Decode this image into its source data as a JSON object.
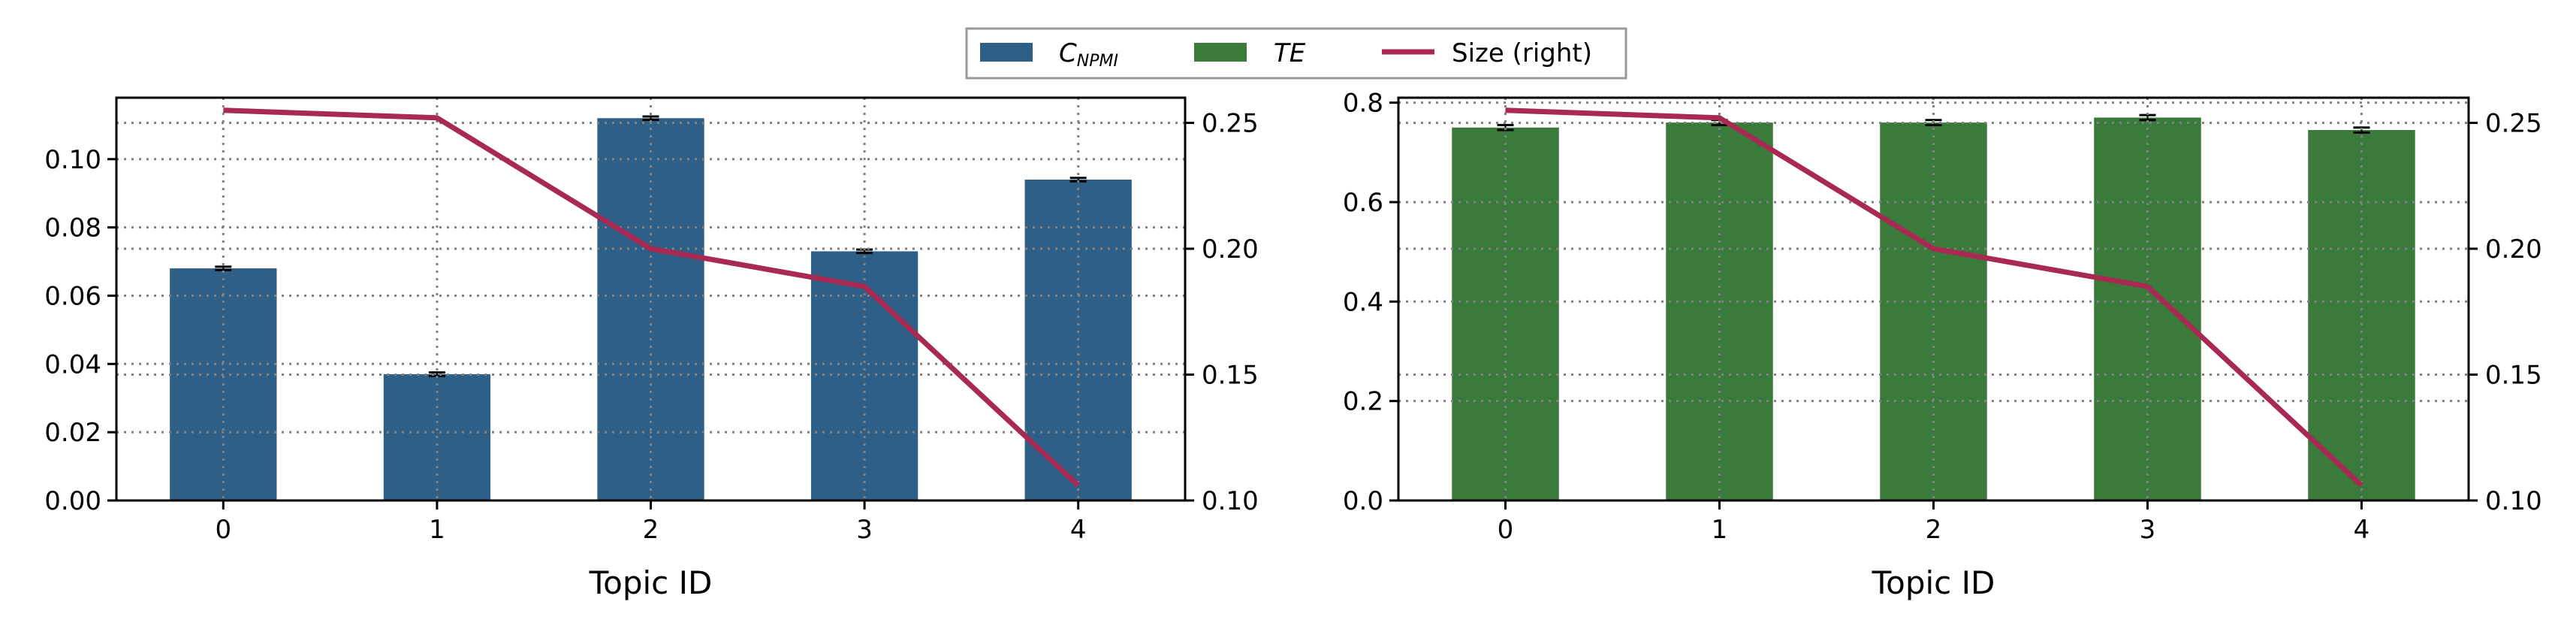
{
  "legend": {
    "items": [
      {
        "label_main": "C",
        "label_sub": "NPMI",
        "italic": true,
        "kind": "patch",
        "color": "#2e5f86"
      },
      {
        "label_main": "TE",
        "label_sub": "",
        "italic": true,
        "kind": "patch",
        "color": "#3a7a3a"
      },
      {
        "label_main": "Size (right)",
        "label_sub": "",
        "italic": false,
        "kind": "line",
        "color": "#a82a52"
      }
    ],
    "placement": "top-center"
  },
  "chart_data": [
    {
      "type": "bar",
      "title": "",
      "xlabel": "Topic ID",
      "ylabel": "",
      "categories": [
        "0",
        "1",
        "2",
        "3",
        "4"
      ],
      "series": [
        {
          "name": "C_NPMI",
          "values": [
            0.068,
            0.037,
            0.112,
            0.073,
            0.094
          ],
          "error": [
            0.0005,
            0.0005,
            0.0005,
            0.0005,
            0.0005
          ],
          "color": "#2e5f86"
        }
      ],
      "ylim": [
        0,
        0.118
      ],
      "yticks": [
        "0.00",
        "0.02",
        "0.04",
        "0.06",
        "0.08",
        "0.10"
      ],
      "secondary": {
        "type": "line",
        "name": "Size (right)",
        "values": [
          0.255,
          0.252,
          0.2,
          0.185,
          0.106
        ],
        "ylim": [
          0.1,
          0.26
        ],
        "yticks": [
          "0.10",
          "0.15",
          "0.20",
          "0.25"
        ],
        "color": "#a82a52"
      },
      "grid": true
    },
    {
      "type": "bar",
      "title": "",
      "xlabel": "Topic ID",
      "ylabel": "",
      "categories": [
        "0",
        "1",
        "2",
        "3",
        "4"
      ],
      "series": [
        {
          "name": "TE",
          "values": [
            0.75,
            0.76,
            0.76,
            0.77,
            0.745
          ],
          "error": [
            0.005,
            0.005,
            0.005,
            0.005,
            0.005
          ],
          "color": "#3a7a3a"
        }
      ],
      "ylim": [
        0,
        0.81
      ],
      "yticks": [
        "0.0",
        "0.2",
        "0.4",
        "0.6",
        "0.8"
      ],
      "secondary": {
        "type": "line",
        "name": "Size (right)",
        "values": [
          0.255,
          0.252,
          0.2,
          0.185,
          0.106
        ],
        "ylim": [
          0.1,
          0.26
        ],
        "yticks": [
          "0.10",
          "0.15",
          "0.20",
          "0.25"
        ],
        "color": "#a82a52"
      },
      "grid": true
    }
  ]
}
